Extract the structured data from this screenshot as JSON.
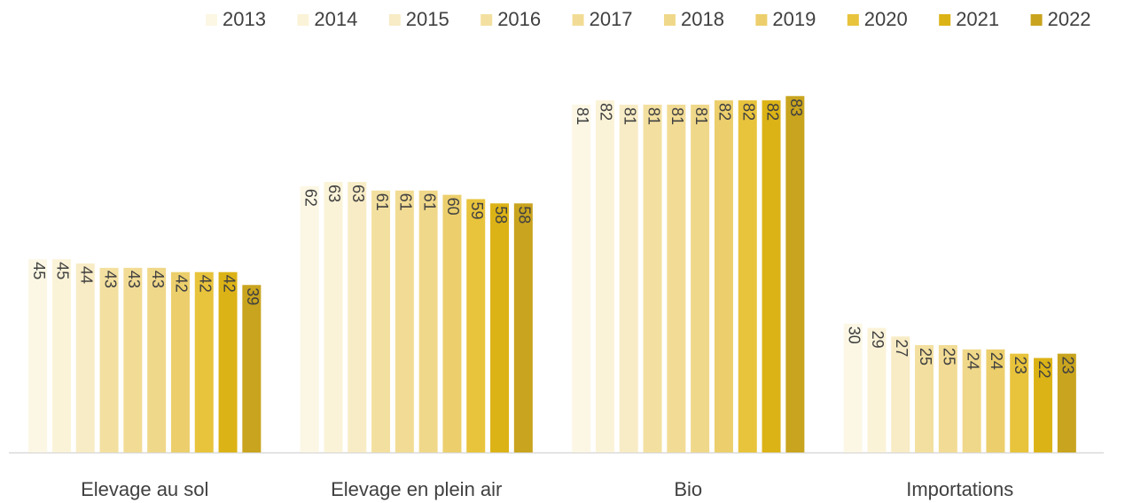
{
  "chart_data": {
    "type": "bar",
    "categories": [
      "Elevage au sol",
      "Elevage en plein air",
      "Bio",
      "Importations"
    ],
    "series": [
      {
        "name": "2013",
        "color": "#fbf7e4",
        "values": [
          45,
          62,
          81,
          30
        ]
      },
      {
        "name": "2014",
        "color": "#fbf3d8",
        "values": [
          45,
          63,
          82,
          29
        ]
      },
      {
        "name": "2015",
        "color": "#f8ecc6",
        "values": [
          44,
          63,
          81,
          27
        ]
      },
      {
        "name": "2016",
        "color": "#f3e0a0",
        "values": [
          43,
          61,
          81,
          25
        ]
      },
      {
        "name": "2017",
        "color": "#f2dc95",
        "values": [
          43,
          61,
          81,
          25
        ]
      },
      {
        "name": "2018",
        "color": "#f0d88a",
        "values": [
          43,
          61,
          81,
          24
        ]
      },
      {
        "name": "2019",
        "color": "#eccf6c",
        "values": [
          42,
          60,
          82,
          24
        ]
      },
      {
        "name": "2020",
        "color": "#e8c33c",
        "values": [
          42,
          59,
          82,
          23
        ]
      },
      {
        "name": "2021",
        "color": "#dcb316",
        "values": [
          42,
          58,
          82,
          22
        ]
      },
      {
        "name": "2022",
        "color": "#c9a41e",
        "values": [
          39,
          58,
          83,
          23
        ]
      }
    ],
    "legend": "top-right"
  }
}
